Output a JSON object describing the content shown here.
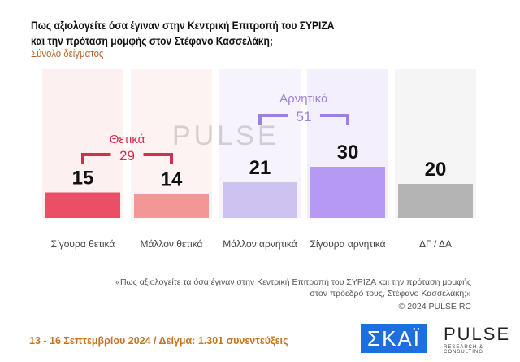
{
  "header": {
    "title_line1": "Πως αξιολογείτε όσα έγιναν στην Κεντρική Επιτροπή του ΣΥΡΙΖΑ",
    "title_line2": "και την πρόταση μομφής στον Στέφανο Κασσελάκη;",
    "subtitle": "Σύνολο δείγματος"
  },
  "chart_data": {
    "type": "bar",
    "categories": [
      "Σίγουρα θετικά",
      "Μάλλον θετικά",
      "Μάλλον αρνητικά",
      "Σίγουρα αρνητικά",
      "ΔΓ / ΔΑ"
    ],
    "values": [
      15,
      14,
      21,
      30,
      20
    ],
    "colors": [
      "#e8334f",
      "#f08585",
      "#c7b8ee",
      "#a98af0",
      "#a8a8a8"
    ],
    "groups": [
      {
        "label": "Θετικά",
        "total": "29",
        "color": "#d0304f"
      },
      {
        "label": "Αρνητικά",
        "total": "51",
        "color": "#9a80e0"
      }
    ]
  },
  "note": {
    "question_line1": "«Πως αξιολογείτε τα όσα έγιναν στην Κεντρική Επιτροπή του ΣΥΡΙΖΑ και την πρόταση μομφής",
    "question_line2": "στον πρόεδρό τους, Στέφανο Κασσελάκη;»",
    "copyright": "© 2024 PULSE RC"
  },
  "footer": {
    "info": "13 - 16 Σεπτεμβρίου 2024  /  Δείγμα:  1.301 συνεντεύξεις",
    "logo_skai": "ΣΚΑΪ",
    "logo_pulse": "PULSE",
    "logo_pulse_sub": "RESEARCH & CONSULTING",
    "watermark": "PULSE"
  }
}
